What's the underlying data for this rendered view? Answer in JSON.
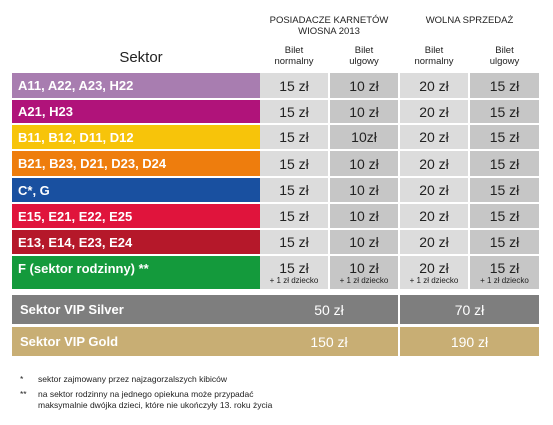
{
  "header": {
    "group1": [
      "POSIADACZE KARNETÓW",
      "WIOSNA 2013"
    ],
    "group2": "WOLNA SPRZEDAŻ",
    "sub_normal": [
      "Bilet",
      "normalny"
    ],
    "sub_ulgowy": [
      "Bilet",
      "ulgowy"
    ],
    "sektor": "Sektor"
  },
  "rows": [
    {
      "name": "A11, A22, A23, H22",
      "color": "#a87db0",
      "v": [
        "15 zł",
        "10 zł",
        "20 zł",
        "15 zł"
      ],
      "notes": [
        "",
        "",
        "",
        ""
      ]
    },
    {
      "name": "A21, H23",
      "color": "#b0137a",
      "v": [
        "15 zł",
        "10 zł",
        "20 zł",
        "15 zł"
      ],
      "notes": [
        "",
        "",
        "",
        ""
      ]
    },
    {
      "name": "B11, B12, D11, D12",
      "color": "#f7c40a",
      "v": [
        "15 zł",
        "10zł",
        "20 zł",
        "15 zł"
      ],
      "notes": [
        "",
        "",
        "",
        ""
      ]
    },
    {
      "name": "B21, B23, D21, D23, D24",
      "color": "#ee7d0d",
      "v": [
        "15 zł",
        "10 zł",
        "20 zł",
        "15 zł"
      ],
      "notes": [
        "",
        "",
        "",
        ""
      ]
    },
    {
      "name": "C*, G",
      "color": "#1950a0",
      "v": [
        "15 zł",
        "10 zł",
        "20 zł",
        "15 zł"
      ],
      "notes": [
        "",
        "",
        "",
        ""
      ]
    },
    {
      "name": "E15, E21, E22, E25",
      "color": "#e0143c",
      "v": [
        "15 zł",
        "10 zł",
        "20 zł",
        "15 zł"
      ],
      "notes": [
        "",
        "",
        "",
        ""
      ]
    },
    {
      "name": "E13, E14, E23, E24",
      "color": "#b5182a",
      "v": [
        "15 zł",
        "10 zł",
        "20 zł",
        "15 zł"
      ],
      "notes": [
        "",
        "",
        "",
        ""
      ]
    },
    {
      "name": "F (sektor rodzinny) **",
      "color": "#149a3c",
      "v": [
        "15 zł",
        "10 zł",
        "20 zł",
        "15 zł"
      ],
      "notes": [
        "+ 1 zł dziecko",
        "+ 1 zł dziecko",
        "+ 1 zł dziecko",
        "+ 1 zł dziecko"
      ]
    }
  ],
  "vip": [
    {
      "name": "Sektor VIP Silver",
      "color": "#7e7e7e",
      "cellcolor": "#7e7e7e",
      "v": [
        "50 zł",
        "70 zł"
      ]
    },
    {
      "name": "Sektor VIP Gold",
      "color": "#c8ae74",
      "cellcolor": "#c8ae74",
      "v": [
        "150 zł",
        "190 zł"
      ]
    }
  ],
  "footnotes": [
    {
      "mark": "*",
      "lines": [
        "sektor zajmowany przez najzagorzalszych kibiców"
      ]
    },
    {
      "mark": "**",
      "lines": [
        "na sektor rodzinny na jednego opiekuna może przypadać",
        "maksymalnie dwójka dzieci, które nie ukończyły 13. roku życia"
      ]
    }
  ]
}
